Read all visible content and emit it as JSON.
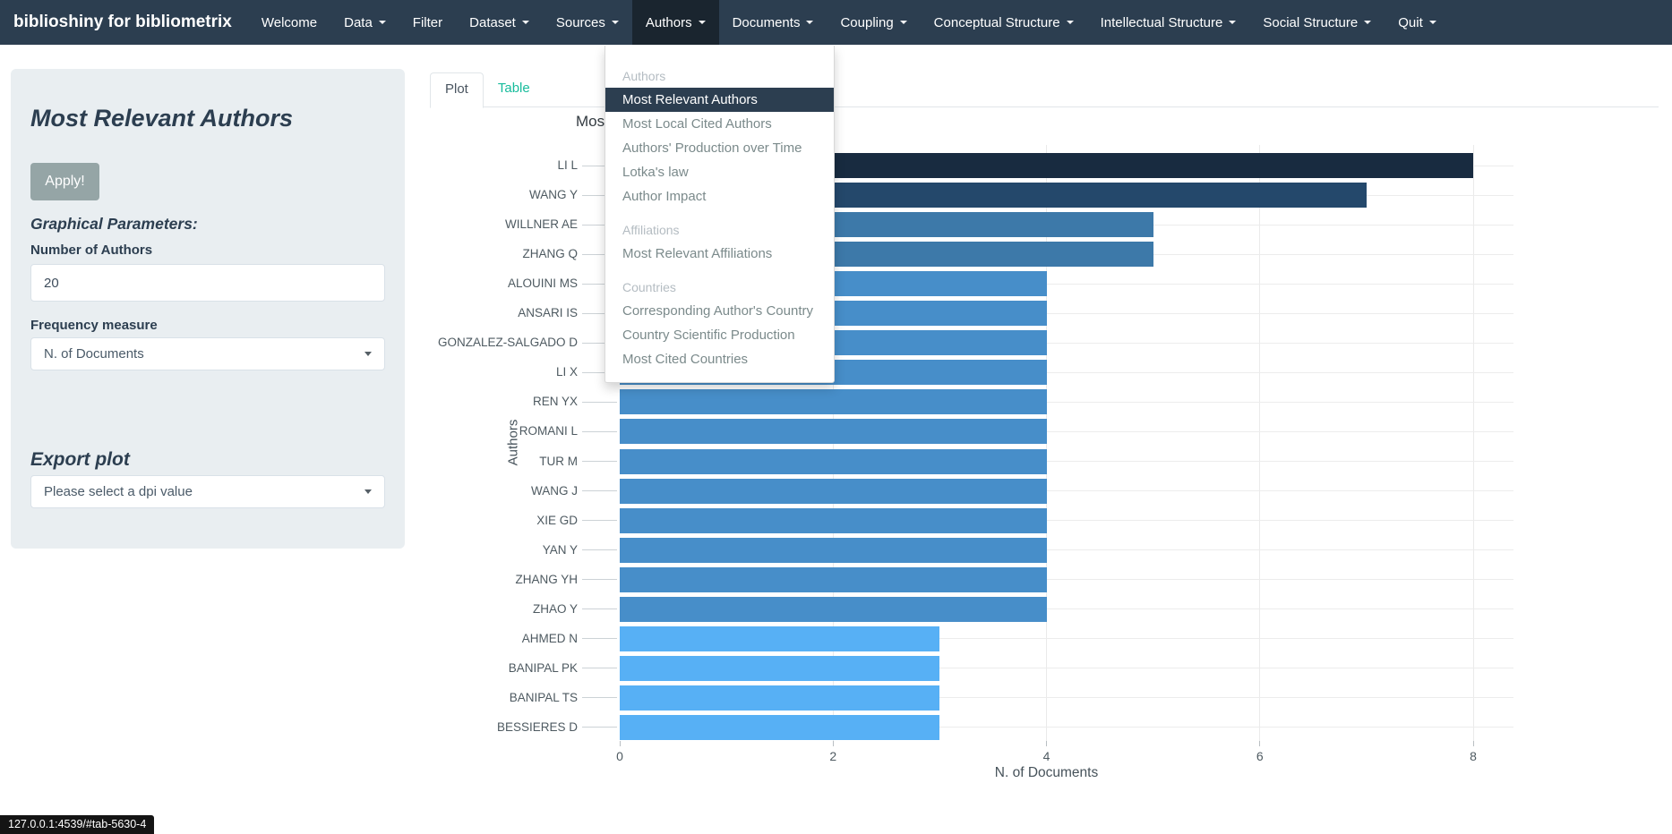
{
  "navbar": {
    "brand": "biblioshiny for bibliometrix",
    "items": [
      {
        "label": "Welcome",
        "caret": false,
        "active": false
      },
      {
        "label": "Data",
        "caret": true,
        "active": false
      },
      {
        "label": "Filter",
        "caret": false,
        "active": false
      },
      {
        "label": "Dataset",
        "caret": true,
        "active": false
      },
      {
        "label": "Sources",
        "caret": true,
        "active": false
      },
      {
        "label": "Authors",
        "caret": true,
        "active": true
      },
      {
        "label": "Documents",
        "caret": true,
        "active": false
      },
      {
        "label": "Coupling",
        "caret": true,
        "active": false
      },
      {
        "label": "Conceptual Structure",
        "caret": true,
        "active": false
      },
      {
        "label": "Intellectual Structure",
        "caret": true,
        "active": false
      },
      {
        "label": "Social Structure",
        "caret": true,
        "active": false
      },
      {
        "label": "Quit",
        "caret": true,
        "active": false
      }
    ]
  },
  "dropdown": {
    "sections": [
      {
        "header": "Authors",
        "items": [
          {
            "label": "Most Relevant Authors",
            "active": true
          },
          {
            "label": "Most Local Cited Authors",
            "active": false
          },
          {
            "label": "Authors' Production over Time",
            "active": false
          },
          {
            "label": "Lotka's law",
            "active": false
          },
          {
            "label": "Author Impact",
            "active": false
          }
        ]
      },
      {
        "header": "Affiliations",
        "items": [
          {
            "label": "Most Relevant Affiliations",
            "active": false
          }
        ]
      },
      {
        "header": "Countries",
        "items": [
          {
            "label": "Corresponding Author's Country",
            "active": false
          },
          {
            "label": "Country Scientific Production",
            "active": false
          },
          {
            "label": "Most Cited Countries",
            "active": false
          }
        ]
      }
    ]
  },
  "sidebar": {
    "title": "Most Relevant Authors",
    "apply_label": "Apply!",
    "graphical_parameters_label": "Graphical Parameters:",
    "number_of_authors_label": "Number of Authors",
    "number_of_authors_value": "20",
    "frequency_measure_label": "Frequency measure",
    "frequency_measure_value": "N. of Documents",
    "export_plot_label": "Export plot",
    "dpi_placeholder": "Please select a dpi value"
  },
  "tabs": [
    {
      "label": "Plot",
      "active": true
    },
    {
      "label": "Table",
      "active": false
    }
  ],
  "chart_data": {
    "type": "bar",
    "orientation": "horizontal",
    "title": "Most Relevant Authors",
    "xlabel": "N. of Documents",
    "ylabel": "Authors",
    "categories": [
      "LI L",
      "WANG Y",
      "WILLNER AE",
      "ZHANG Q",
      "ALOUINI MS",
      "ANSARI IS",
      "GONZALEZ-SALGADO D",
      "LI X",
      "REN YX",
      "ROMANI L",
      "TUR M",
      "WANG J",
      "XIE GD",
      "YAN Y",
      "ZHANG YH",
      "ZHAO Y",
      "AHMED N",
      "BANIPAL PK",
      "BANIPAL TS",
      "BESSIERES D"
    ],
    "values": [
      8,
      7,
      5,
      5,
      4,
      4,
      4,
      4,
      4,
      4,
      4,
      4,
      4,
      4,
      4,
      4,
      3,
      3,
      3,
      3
    ],
    "xticks": [
      0,
      2,
      4,
      6,
      8
    ],
    "xlim": [
      0,
      8.4
    ],
    "grid": true,
    "bar_color_map": {
      "8": "#182b40",
      "7": "#24486b",
      "5": "#3d79a9",
      "4": "#478ec9",
      "3": "#57b0f5"
    }
  },
  "statusbar": {
    "url": "127.0.0.1:4539/#tab-5630-4"
  },
  "colors": {
    "navbar_bg": "#2c3e50",
    "navbar_active_bg": "#1a252f",
    "dropdown_active_bg": "#2c3e50",
    "link_teal": "#18bc9c",
    "panel_bg": "#e9eef1",
    "button_gray": "#95a5a6",
    "heading_navy": "#2c3e50"
  }
}
